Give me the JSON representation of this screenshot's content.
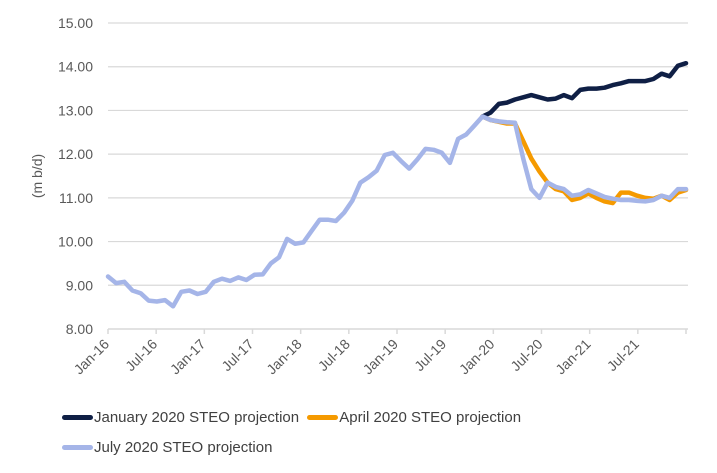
{
  "chart_data": {
    "type": "line",
    "title": "",
    "xlabel": "",
    "ylabel": "(m b/d)",
    "ylim": [
      8,
      15
    ],
    "yticks": [
      "8.00",
      "9.00",
      "10.00",
      "11.00",
      "12.00",
      "13.00",
      "14.00",
      "15.00"
    ],
    "ytick_values": [
      8,
      9,
      10,
      11,
      12,
      13,
      14,
      15
    ],
    "xticks": [
      "Jan-16",
      "Jul-16",
      "Jan-17",
      "Jul-17",
      "Jan-18",
      "Jul-18",
      "Jan-19",
      "Jul-19",
      "Jan-20",
      "Jul-20",
      "Jan-21",
      "Jul-21"
    ],
    "xtick_month_index": [
      0,
      6,
      12,
      18,
      24,
      30,
      36,
      42,
      48,
      54,
      60,
      66
    ],
    "x_start": "Jan-16",
    "x_months": 72,
    "grid": "horizontal",
    "legend_position": "bottom",
    "series": [
      {
        "name": "January 2020 STEO projection",
        "color": "#0f1f45",
        "start_index": 46,
        "values": [
          12.86,
          12.95,
          13.15,
          13.18,
          13.25,
          13.3,
          13.35,
          13.3,
          13.25,
          13.27,
          13.35,
          13.28,
          13.47,
          13.5,
          13.5,
          13.52,
          13.58,
          13.62,
          13.67,
          13.67,
          13.67,
          13.72,
          13.84,
          13.78,
          14.02,
          14.08
        ]
      },
      {
        "name": "April 2020 STEO projection",
        "color": "#f59a00",
        "start_index": 46,
        "values": [
          12.86,
          12.78,
          12.74,
          12.7,
          12.7,
          12.3,
          11.9,
          11.6,
          11.35,
          11.2,
          11.15,
          10.95,
          11.0,
          11.1,
          11.0,
          10.92,
          10.88,
          11.12,
          11.12,
          11.05,
          11.0,
          10.98,
          11.05,
          10.95,
          11.12,
          11.18
        ]
      },
      {
        "name": "July 2020 STEO projection",
        "color": "#a5b5e8",
        "start_index": 0,
        "values": [
          9.2,
          9.05,
          9.08,
          8.88,
          8.82,
          8.65,
          8.63,
          8.66,
          8.52,
          8.85,
          8.88,
          8.8,
          8.85,
          9.08,
          9.15,
          9.1,
          9.18,
          9.12,
          9.24,
          9.25,
          9.5,
          9.64,
          10.06,
          9.95,
          9.98,
          10.24,
          10.5,
          10.5,
          10.47,
          10.66,
          10.93,
          11.35,
          11.47,
          11.62,
          11.98,
          12.03,
          11.84,
          11.67,
          11.88,
          12.12,
          12.1,
          12.03,
          11.8,
          12.35,
          12.45,
          12.65,
          12.86,
          12.78,
          12.75,
          12.73,
          12.72,
          11.9,
          11.2,
          11.0,
          11.35,
          11.25,
          11.2,
          11.05,
          11.08,
          11.18,
          11.1,
          11.02,
          10.98,
          10.95,
          10.95,
          10.93,
          10.92,
          10.95,
          11.05,
          11.0,
          11.2,
          11.2
        ]
      }
    ]
  },
  "legend": {
    "items": [
      {
        "label": "January 2020 STEO projection",
        "color": "#0f1f45"
      },
      {
        "label": "April 2020 STEO projection",
        "color": "#f59a00"
      },
      {
        "label": "July 2020 STEO projection",
        "color": "#a5b5e8"
      }
    ]
  }
}
